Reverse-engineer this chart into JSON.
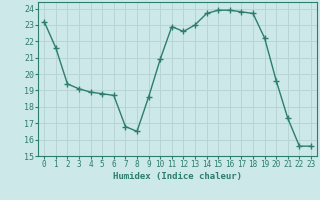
{
  "x": [
    0,
    1,
    2,
    3,
    4,
    5,
    6,
    7,
    8,
    9,
    10,
    11,
    12,
    13,
    14,
    15,
    16,
    17,
    18,
    19,
    20,
    21,
    22,
    23
  ],
  "y": [
    23.2,
    21.6,
    19.4,
    19.1,
    18.9,
    18.8,
    18.7,
    16.8,
    16.5,
    18.6,
    20.9,
    22.9,
    22.6,
    23.0,
    23.7,
    23.9,
    23.9,
    23.8,
    23.7,
    22.2,
    19.6,
    17.3,
    15.6,
    15.6
  ],
  "line_color": "#2d7d6e",
  "bg_color": "#cce8e8",
  "grid_color": "#b8d4d4",
  "tick_color": "#2d7d6e",
  "xlabel": "Humidex (Indice chaleur)",
  "ylim": [
    15,
    24.4
  ],
  "xlim": [
    -0.5,
    23.5
  ],
  "yticks": [
    15,
    16,
    17,
    18,
    19,
    20,
    21,
    22,
    23,
    24
  ],
  "xticks": [
    0,
    1,
    2,
    3,
    4,
    5,
    6,
    7,
    8,
    9,
    10,
    11,
    12,
    13,
    14,
    15,
    16,
    17,
    18,
    19,
    20,
    21,
    22,
    23
  ]
}
